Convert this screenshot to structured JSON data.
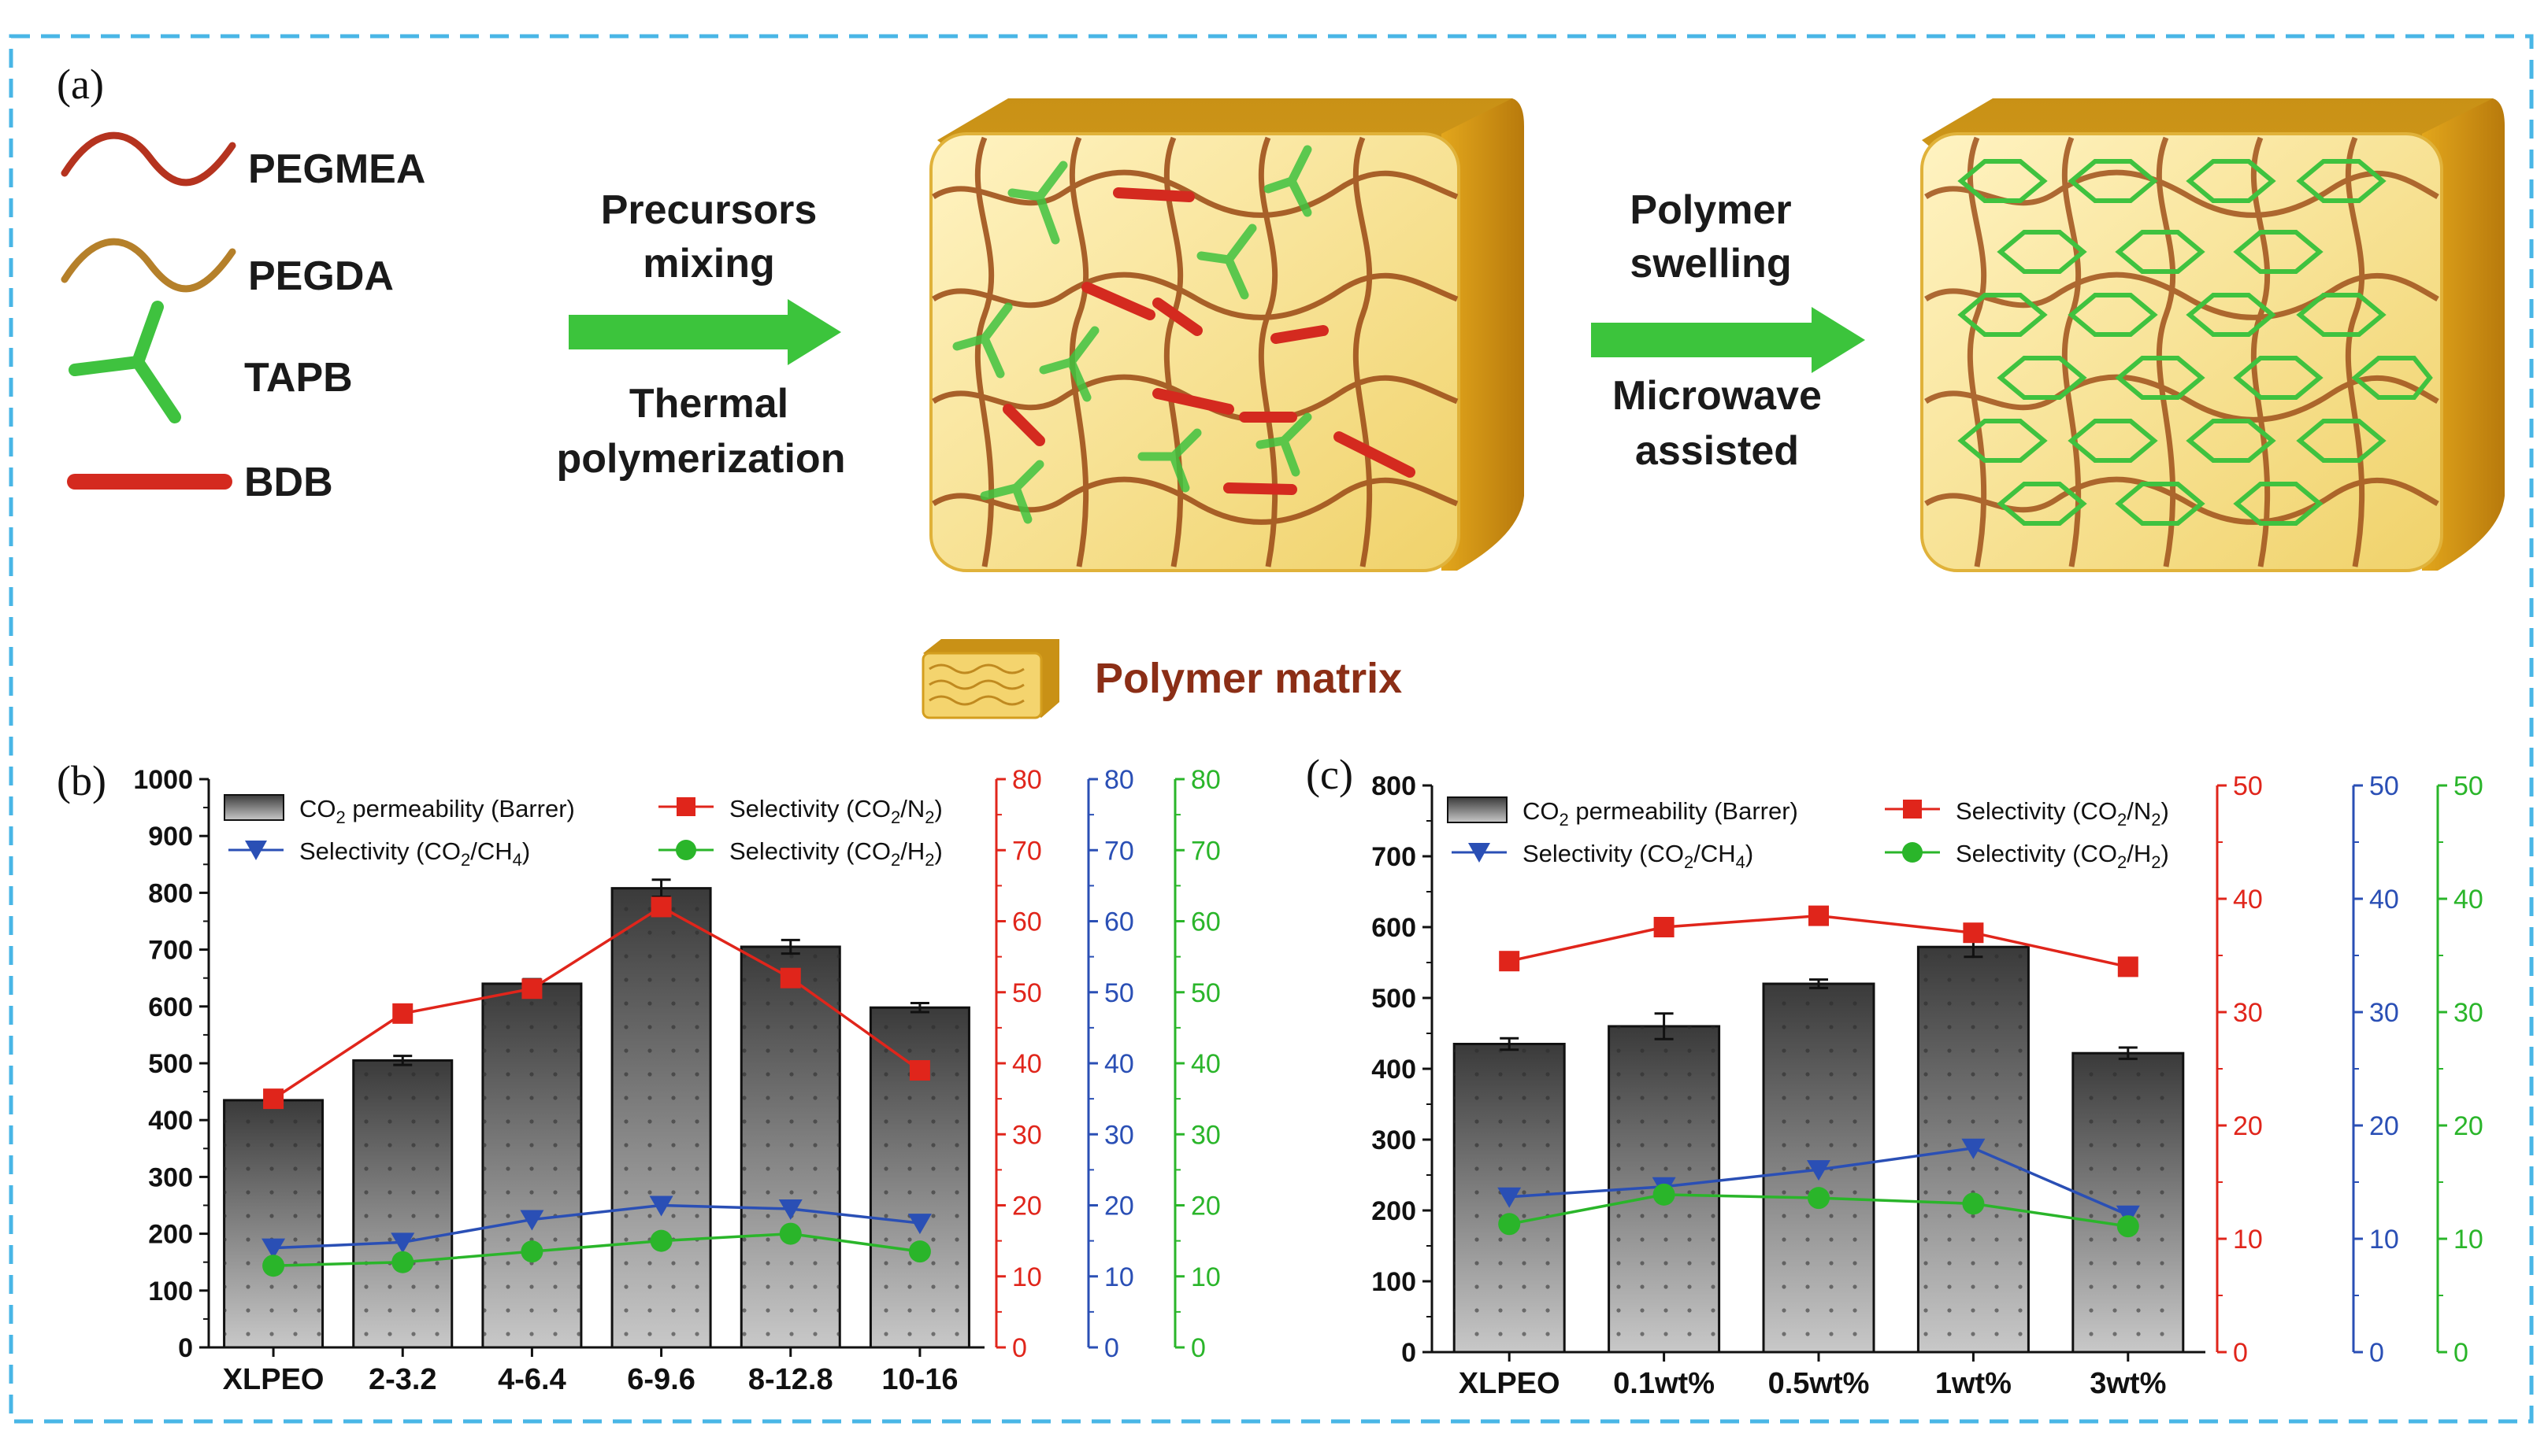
{
  "schematic": {
    "panel_label": "(a)",
    "legend": [
      {
        "label": "PEGMEA",
        "color": "#b5331f"
      },
      {
        "label": "PEGDA",
        "color": "#b5802a"
      },
      {
        "label": "TAPB",
        "color": "#3fc23f"
      },
      {
        "label": "BDB",
        "color": "#d42a1f"
      }
    ],
    "step1_top": [
      "Precursors",
      "mixing"
    ],
    "step1_bottom": [
      "Thermal",
      "polymerization"
    ],
    "step2_top": [
      "Polymer",
      "swelling"
    ],
    "step2_bottom": [
      "Microwave",
      "assisted"
    ],
    "matrix_label": "Polymer matrix",
    "colors": {
      "arrow": "#3cc43c",
      "matrix": "#e9b825",
      "matrix_label": "#8b2e16",
      "frame": "#49b6e6"
    }
  },
  "chart_data": [
    {
      "panel_label": "(b)",
      "type": "bar",
      "categories": [
        "XLPEO",
        "2-3.2",
        "4-6.4",
        "6-9.6",
        "8-12.8",
        "10-16"
      ],
      "bars": {
        "name": "CO2 permeability (Barrer)",
        "legend_main": "CO",
        "legend_sub": "2",
        "legend_tail": " permeability (Barrer)",
        "values": [
          435,
          505,
          640,
          808,
          705,
          598
        ],
        "errors": [
          0,
          8,
          8,
          15,
          12,
          8
        ]
      },
      "series": [
        {
          "name": "Selectivity (CO2/N2)",
          "color": "#e0251b",
          "marker": "square",
          "values": [
            35,
            47,
            50.5,
            62,
            52,
            39
          ]
        },
        {
          "name": "Selectivity (CO2/CH4)",
          "color": "#2a4fb5",
          "marker": "triangle-down",
          "values": [
            14,
            14.8,
            18,
            20,
            19.5,
            17.5
          ]
        },
        {
          "name": "Selectivity (CO2/H2)",
          "color": "#2ab52a",
          "marker": "circle",
          "values": [
            11.5,
            12,
            13.5,
            15,
            16,
            13.5
          ]
        }
      ],
      "legend_labels": [
        {
          "pre": "Selectivity (CO",
          "s1": "2",
          "mid": "/N",
          "s2": "2",
          "post": ")"
        },
        {
          "pre": "Selectivity (CO",
          "s1": "2",
          "mid": "/CH",
          "s2": "4",
          "post": ")"
        },
        {
          "pre": "Selectivity (CO",
          "s1": "2",
          "mid": "/H",
          "s2": "2",
          "post": ")"
        }
      ],
      "left_axis": {
        "min": 0,
        "max": 1000,
        "step": 100,
        "ticks": [
          "0",
          "100",
          "200",
          "300",
          "400",
          "500",
          "600",
          "700",
          "800",
          "900",
          "1000"
        ]
      },
      "right_axis": {
        "min": 0,
        "max": 80,
        "ticks": [
          "0",
          "10",
          "20",
          "30",
          "40",
          "50",
          "60",
          "70",
          "80"
        ]
      }
    },
    {
      "panel_label": "(c)",
      "type": "bar",
      "categories": [
        "XLPEO",
        "0.1wt%",
        "0.5wt%",
        "1wt%",
        "3wt%"
      ],
      "bars": {
        "name": "CO2 permeability (Barrer)",
        "legend_main": "CO",
        "legend_sub": "2",
        "legend_tail": " permeability (Barrer)",
        "values": [
          435,
          460,
          520,
          572,
          422
        ],
        "errors": [
          8,
          18,
          6,
          14,
          8
        ]
      },
      "series": [
        {
          "name": "Selectivity (CO2/N2)",
          "color": "#e0251b",
          "marker": "square",
          "values": [
            34.5,
            37.5,
            38.5,
            37,
            34
          ]
        },
        {
          "name": "Selectivity (CO2/CH4)",
          "color": "#2a4fb5",
          "marker": "triangle-down",
          "values": [
            13.7,
            14.6,
            16.1,
            18,
            12.1
          ]
        },
        {
          "name": "Selectivity (CO2/H2)",
          "color": "#2ab52a",
          "marker": "circle",
          "values": [
            11.3,
            13.9,
            13.6,
            13.1,
            11.1
          ]
        }
      ],
      "legend_labels": [
        {
          "pre": "Selectivity (CO",
          "s1": "2",
          "mid": "/N",
          "s2": "2",
          "post": ")"
        },
        {
          "pre": "Selectivity (CO",
          "s1": "2",
          "mid": "/CH",
          "s2": "4",
          "post": ")"
        },
        {
          "pre": "Selectivity (CO",
          "s1": "2",
          "mid": "/H",
          "s2": "2",
          "post": ")"
        }
      ],
      "left_axis": {
        "min": 0,
        "max": 800,
        "step": 100,
        "ticks": [
          "0",
          "100",
          "200",
          "300",
          "400",
          "500",
          "600",
          "700",
          "800"
        ]
      },
      "right_axis": {
        "min": 0,
        "max": 50,
        "ticks": [
          "0",
          "10",
          "20",
          "30",
          "40",
          "50"
        ]
      }
    }
  ]
}
